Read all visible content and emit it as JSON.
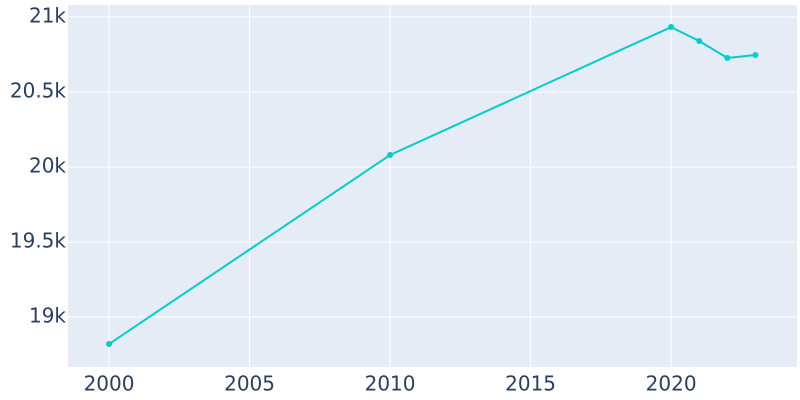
{
  "chart_data": {
    "type": "line",
    "x": [
      2000,
      2010,
      2020,
      2021,
      2022,
      2023
    ],
    "series": [
      {
        "color": "#00cccc",
        "values": [
          18820,
          20080,
          20933,
          20840,
          20727,
          20747
        ]
      }
    ],
    "xlim": [
      1998.54,
      2024.48
    ],
    "xticks": [
      2000,
      2005,
      2010,
      2015,
      2020
    ],
    "ylim": [
      18667,
      21080
    ],
    "yticks": [
      {
        "value": 19000,
        "label": "19k"
      },
      {
        "value": 19500,
        "label": "19.5k"
      },
      {
        "value": 20000,
        "label": "20k"
      },
      {
        "value": 20500,
        "label": "20.5k"
      },
      {
        "value": 21000,
        "label": "21k"
      }
    ],
    "grid": true
  }
}
